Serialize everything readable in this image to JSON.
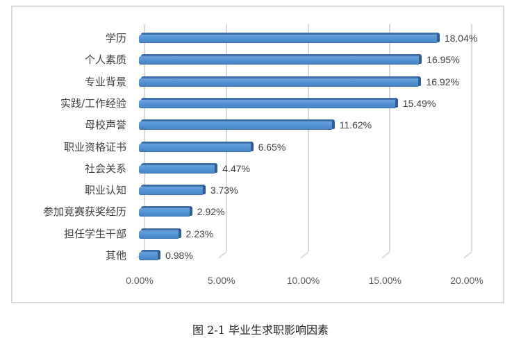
{
  "chart_data": {
    "type": "bar",
    "orientation": "horizontal",
    "style": "3d-clustered-bar",
    "title": "",
    "caption": "图 2-1 毕业生求职影响因素",
    "xlabel": "",
    "ylabel": "",
    "categories": [
      "学历",
      "个人素质",
      "专业背景",
      "实践/工作经验",
      "母校声誉",
      "职业资格证书",
      "社会关系",
      "职业认知",
      "参加竞赛获奖经历",
      "担任学生干部",
      "其他"
    ],
    "values": [
      18.04,
      16.95,
      16.92,
      15.49,
      11.62,
      6.65,
      4.47,
      3.73,
      2.92,
      2.23,
      0.98
    ],
    "value_labels": [
      "18.04%",
      "16.95%",
      "16.92%",
      "15.49%",
      "11.62%",
      "6.65%",
      "4.47%",
      "3.73%",
      "2.92%",
      "2.23%",
      "0.98%"
    ],
    "x_ticks": [
      "0.00%",
      "5.00%",
      "10.00%",
      "15.00%",
      "20.00%"
    ],
    "xlim": [
      0,
      20
    ],
    "grid": "vertical",
    "legend": "none",
    "bar_color": "#5b9bd5"
  },
  "caption": "图 2-1 毕业生求职影响因素"
}
